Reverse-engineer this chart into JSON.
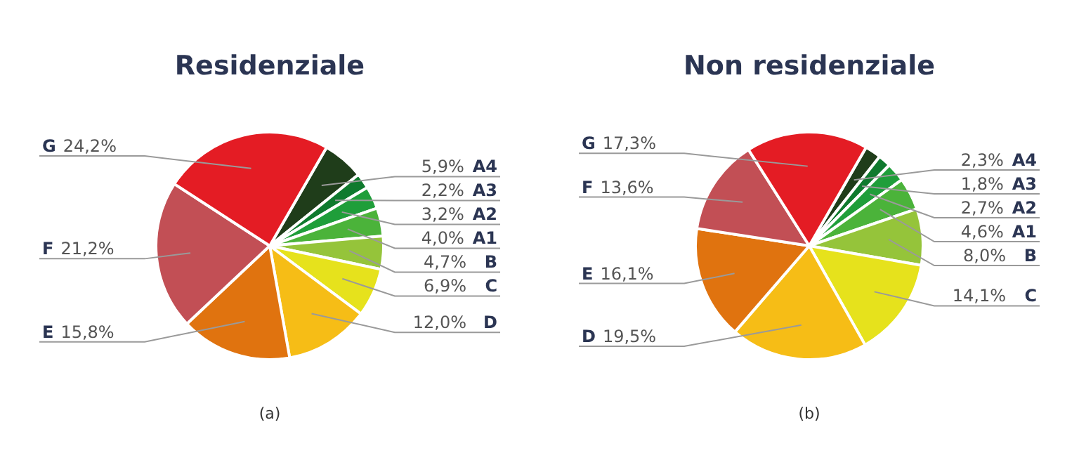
{
  "chart_data": [
    {
      "type": "pie",
      "title": "Residenziale",
      "categories": [
        "A4",
        "A3",
        "A2",
        "A1",
        "B",
        "C",
        "D",
        "E",
        "F",
        "G"
      ],
      "values": [
        5.9,
        2.2,
        3.2,
        4.0,
        4.7,
        6.9,
        12.0,
        15.8,
        21.2,
        24.2
      ],
      "value_labels": [
        "5,9%",
        "2,2%",
        "3,2%",
        "4,0%",
        "4,7%",
        "6,9%",
        "12,0%",
        "15,8%",
        "21,2%",
        "24,2%"
      ],
      "colors": [
        "#1f3d1a",
        "#0f7a2e",
        "#1f9e3a",
        "#4bb33a",
        "#95c43a",
        "#e6e21c",
        "#f6bd16",
        "#e0730f",
        "#c24f55",
        "#e41c24"
      ],
      "annotations": [
        "(a)"
      ]
    },
    {
      "type": "pie",
      "title": "Non residenziale",
      "categories": [
        "A4",
        "A3",
        "A2",
        "A1",
        "B",
        "C",
        "D",
        "E",
        "F",
        "G"
      ],
      "values": [
        2.3,
        1.8,
        2.7,
        4.6,
        8.0,
        14.1,
        19.5,
        16.1,
        13.6,
        17.3
      ],
      "value_labels": [
        "2,3%",
        "1,8%",
        "2,7%",
        "4,6%",
        "8,0%",
        "14,1%",
        "19,5%",
        "16,1%",
        "13,6%",
        "17,3%"
      ],
      "colors": [
        "#1f3d1a",
        "#0f7a2e",
        "#1f9e3a",
        "#4bb33a",
        "#95c43a",
        "#e6e21c",
        "#f6bd16",
        "#e0730f",
        "#c24f55",
        "#e41c24"
      ],
      "annotations": [
        "(b)"
      ]
    }
  ]
}
